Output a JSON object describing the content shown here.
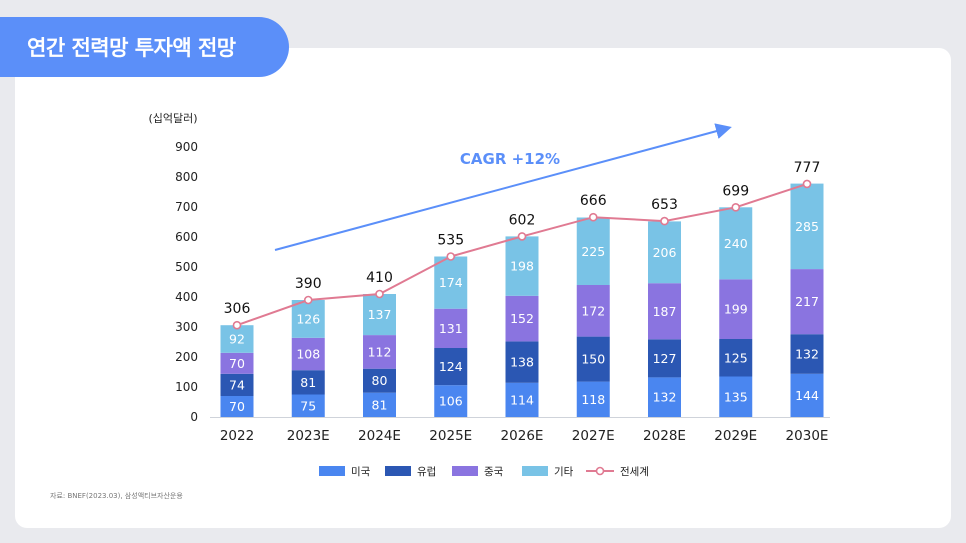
{
  "page": {
    "title": "연간 전력망 투자액 전망",
    "source": "자료: BNEF(2023.03), 삼성액티브자산운용"
  },
  "colors": {
    "title_bg": "#5b8ff9",
    "us": "#4a86f0",
    "europe": "#2b57b3",
    "china": "#8a74e0",
    "other": "#79c3e6",
    "total_line": "#e07a92",
    "cagr_arrow": "#5b8ff9"
  },
  "chart_data": {
    "type": "bar",
    "stacked": true,
    "unit_label": "(십억달러)",
    "categories": [
      "2022",
      "2023E",
      "2024E",
      "2025E",
      "2026E",
      "2027E",
      "2028E",
      "2029E",
      "2030E"
    ],
    "series": [
      {
        "name": "미국",
        "key": "us",
        "values": [
          70,
          75,
          81,
          106,
          114,
          118,
          132,
          135,
          144
        ]
      },
      {
        "name": "유럽",
        "key": "europe",
        "values": [
          74,
          81,
          80,
          124,
          138,
          150,
          127,
          125,
          132
        ]
      },
      {
        "name": "중국",
        "key": "china",
        "values": [
          70,
          108,
          112,
          131,
          152,
          172,
          187,
          199,
          217
        ]
      },
      {
        "name": "기타",
        "key": "other",
        "values": [
          92,
          126,
          137,
          174,
          198,
          225,
          206,
          240,
          285
        ]
      }
    ],
    "total": {
      "name": "전세계",
      "values": [
        306,
        390,
        410,
        535,
        602,
        666,
        653,
        699,
        777
      ]
    },
    "ylim": [
      0,
      900
    ],
    "yticks": [
      0,
      100,
      200,
      300,
      400,
      500,
      600,
      700,
      800,
      900
    ],
    "annotation": "CAGR +12%",
    "legend_position": "bottom"
  }
}
